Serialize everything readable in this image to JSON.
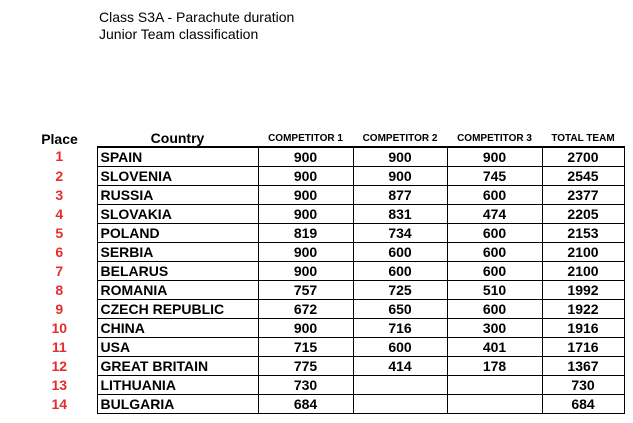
{
  "title": {
    "line1": "Class S3A - Parachute duration",
    "line2": "Junior Team classification"
  },
  "colors": {
    "place_number": "#e52d2d",
    "text": "#000000",
    "grid": "#000000"
  },
  "table": {
    "headers": {
      "place": "Place",
      "country": "Country",
      "competitor1": "COMPETITOR 1",
      "competitor2": "COMPETITOR 2",
      "competitor3": "COMPETITOR 3",
      "total": "TOTAL TEAM"
    },
    "rows": [
      {
        "place": "1",
        "country": "SPAIN",
        "c1": "900",
        "c2": "900",
        "c3": "900",
        "total": "2700"
      },
      {
        "place": "2",
        "country": "SLOVENIA",
        "c1": "900",
        "c2": "900",
        "c3": "745",
        "total": "2545"
      },
      {
        "place": "3",
        "country": "RUSSIA",
        "c1": "900",
        "c2": "877",
        "c3": "600",
        "total": "2377"
      },
      {
        "place": "4",
        "country": "SLOVAKIA",
        "c1": "900",
        "c2": "831",
        "c3": "474",
        "total": "2205"
      },
      {
        "place": "5",
        "country": "POLAND",
        "c1": "819",
        "c2": "734",
        "c3": "600",
        "total": "2153"
      },
      {
        "place": "6",
        "country": "SERBIA",
        "c1": "900",
        "c2": "600",
        "c3": "600",
        "total": "2100"
      },
      {
        "place": "7",
        "country": "BELARUS",
        "c1": "900",
        "c2": "600",
        "c3": "600",
        "total": "2100"
      },
      {
        "place": "8",
        "country": "ROMANIA",
        "c1": "757",
        "c2": "725",
        "c3": "510",
        "total": "1992"
      },
      {
        "place": "9",
        "country": "CZECH REPUBLIC",
        "c1": "672",
        "c2": "650",
        "c3": "600",
        "total": "1922"
      },
      {
        "place": "10",
        "country": "CHINA",
        "c1": "900",
        "c2": "716",
        "c3": "300",
        "total": "1916"
      },
      {
        "place": "11",
        "country": "USA",
        "c1": "715",
        "c2": "600",
        "c3": "401",
        "total": "1716"
      },
      {
        "place": "12",
        "country": "GREAT BRITAIN",
        "c1": "775",
        "c2": "414",
        "c3": "178",
        "total": "1367"
      },
      {
        "place": "13",
        "country": "LITHUANIA",
        "c1": "730",
        "c2": "",
        "c3": "",
        "total": "730"
      },
      {
        "place": "14",
        "country": "BULGARIA",
        "c1": "684",
        "c2": "",
        "c3": "",
        "total": "684"
      }
    ]
  }
}
